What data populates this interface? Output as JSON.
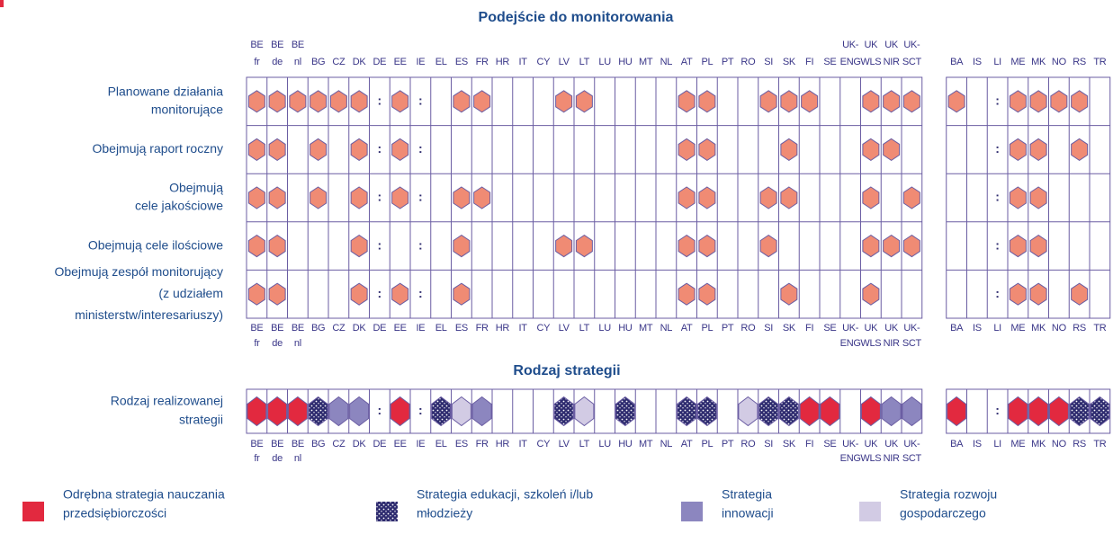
{
  "columns": [
    [
      "BE",
      "fr"
    ],
    [
      "BE",
      "de"
    ],
    [
      "BE",
      "nl"
    ],
    [
      "BG"
    ],
    [
      "CZ"
    ],
    [
      "DK"
    ],
    [
      "DE"
    ],
    [
      "EE"
    ],
    [
      "IE"
    ],
    [
      "EL"
    ],
    [
      "ES"
    ],
    [
      "FR"
    ],
    [
      "HR"
    ],
    [
      "IT"
    ],
    [
      "CY"
    ],
    [
      "LV"
    ],
    [
      "LT"
    ],
    [
      "LU"
    ],
    [
      "HU"
    ],
    [
      "MT"
    ],
    [
      "NL"
    ],
    [
      "AT"
    ],
    [
      "PL"
    ],
    [
      "PT"
    ],
    [
      "RO"
    ],
    [
      "SI"
    ],
    [
      "SK"
    ],
    [
      "FI"
    ],
    [
      "SE"
    ],
    [
      "UK-",
      "ENG"
    ],
    [
      "UK",
      "WLS"
    ],
    [
      "UK",
      "NIR"
    ],
    [
      "UK-",
      "SCT"
    ],
    [
      "BA"
    ],
    [
      "IS"
    ],
    [
      "LI"
    ],
    [
      "ME"
    ],
    [
      "MK"
    ],
    [
      "NO"
    ],
    [
      "RS"
    ],
    [
      "TR"
    ]
  ],
  "monitoring": {
    "title": "Podejście do monitorowania",
    "rows": [
      {
        "label": [
          "Planowane działania",
          "monitorujące"
        ],
        "cells": [
          1,
          1,
          1,
          1,
          1,
          1,
          ":",
          1,
          ":",
          null,
          1,
          1,
          null,
          null,
          null,
          1,
          1,
          null,
          null,
          null,
          null,
          1,
          1,
          null,
          null,
          1,
          1,
          1,
          null,
          null,
          1,
          1,
          1,
          1,
          null,
          ":",
          1,
          1,
          1,
          1,
          null
        ]
      },
      {
        "label": [
          "Obejmują raport roczny"
        ],
        "cells": [
          1,
          1,
          null,
          1,
          null,
          1,
          ":",
          1,
          ":",
          null,
          null,
          null,
          null,
          null,
          null,
          null,
          null,
          null,
          null,
          null,
          null,
          1,
          1,
          null,
          null,
          null,
          1,
          null,
          null,
          null,
          1,
          1,
          null,
          null,
          null,
          ":",
          1,
          1,
          null,
          1,
          null
        ]
      },
      {
        "label": [
          "Obejmują",
          "cele jakościowe"
        ],
        "cells": [
          1,
          1,
          null,
          1,
          null,
          1,
          ":",
          1,
          ":",
          null,
          1,
          1,
          null,
          null,
          null,
          null,
          null,
          null,
          null,
          null,
          null,
          1,
          1,
          null,
          null,
          1,
          1,
          null,
          null,
          null,
          1,
          null,
          1,
          null,
          null,
          ":",
          1,
          1,
          null,
          null,
          null
        ]
      },
      {
        "label": [
          "Obejmują cele ilościowe"
        ],
        "cells": [
          1,
          1,
          null,
          null,
          null,
          1,
          ":",
          null,
          ":",
          null,
          1,
          null,
          null,
          null,
          null,
          1,
          1,
          null,
          null,
          null,
          null,
          1,
          1,
          null,
          null,
          1,
          null,
          null,
          null,
          null,
          1,
          1,
          1,
          null,
          null,
          ":",
          1,
          1,
          null,
          null,
          null
        ]
      },
      {
        "label": [
          "Obejmują zespół monitorujący",
          "(z udziałem",
          "ministerstw/interesariuszy)"
        ],
        "cells": [
          1,
          1,
          null,
          null,
          null,
          1,
          ":",
          1,
          ":",
          null,
          1,
          null,
          null,
          null,
          null,
          null,
          null,
          null,
          null,
          null,
          null,
          1,
          1,
          null,
          null,
          null,
          1,
          null,
          null,
          null,
          1,
          null,
          null,
          null,
          null,
          ":",
          1,
          1,
          null,
          1,
          null
        ]
      }
    ]
  },
  "strategy": {
    "title": "Rodzaj strategii",
    "label": [
      "Rodzaj realizowanej",
      "strategii"
    ],
    "cells": [
      0,
      0,
      0,
      1,
      2,
      2,
      ":",
      0,
      ":",
      1,
      3,
      2,
      null,
      null,
      null,
      1,
      3,
      null,
      1,
      null,
      null,
      1,
      1,
      null,
      3,
      1,
      1,
      0,
      0,
      null,
      0,
      2,
      2,
      0,
      null,
      ":",
      0,
      0,
      0,
      1,
      1
    ]
  },
  "legend": [
    {
      "label": [
        "Odrębna strategia nauczania",
        "przedsiębiorczości"
      ],
      "color": "#e2293f"
    },
    {
      "label": [
        "Strategia edukacji, szkoleń i/lub",
        "młodzieży"
      ],
      "color": "#2e2b6f",
      "pattern": "dots"
    },
    {
      "label": [
        "Strategia",
        "innowacji"
      ],
      "color": "#8c86bf"
    },
    {
      "label": [
        "Strategia rozwoju",
        "gospodarczego"
      ],
      "color": "#d2cbe4"
    }
  ]
}
